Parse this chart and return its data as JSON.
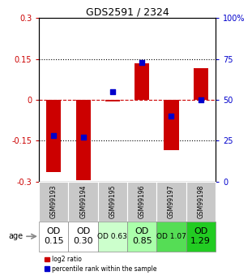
{
  "title": "GDS2591 / 2324",
  "samples": [
    "GSM99193",
    "GSM99194",
    "GSM99195",
    "GSM99196",
    "GSM99197",
    "GSM99198"
  ],
  "log2_ratio": [
    -0.265,
    -0.295,
    -0.005,
    0.135,
    -0.185,
    0.115
  ],
  "percentile_rank": [
    28,
    27,
    55,
    73,
    40,
    50
  ],
  "od_labels": [
    "OD\n0.15",
    "OD\n0.30",
    "OD 0.63",
    "OD\n0.85",
    "OD 1.07",
    "OD\n1.29"
  ],
  "od_colors": [
    "#ffffff",
    "#ffffff",
    "#ccffcc",
    "#aaffaa",
    "#55dd55",
    "#22cc22"
  ],
  "od_fontsize": [
    8,
    8,
    6.5,
    8,
    6.5,
    8
  ],
  "ylim": [
    -0.3,
    0.3
  ],
  "yticks_left": [
    -0.3,
    -0.15,
    0,
    0.15,
    0.3
  ],
  "yticks_right": [
    0,
    25,
    50,
    75,
    100
  ],
  "bar_color": "#cc0000",
  "dot_color": "#0000cc",
  "bar_width": 0.5,
  "dot_size": 18,
  "legend_red": "log2 ratio",
  "legend_blue": "percentile rank within the sample",
  "age_label": "age",
  "gsm_row_color": "#c8c8c8",
  "plot_bg": "#ffffff"
}
